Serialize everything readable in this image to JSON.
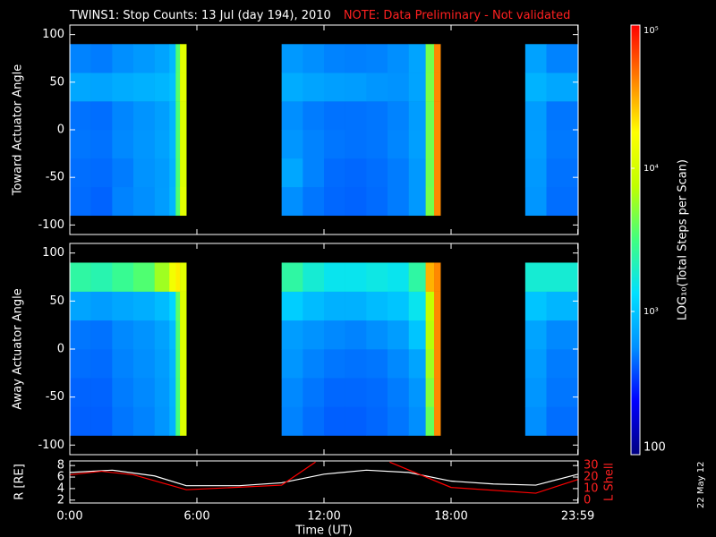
{
  "title": "TWINS1: Stop Counts: 13 Jul (day 194), 2010",
  "note": "NOTE: Data Preliminary - Not validated",
  "footer": "22 May 12",
  "colorbar": {
    "label": "LOG₁₀(Total Steps per Scan)",
    "zlim": [
      100,
      100000
    ],
    "log": true,
    "zticks": [
      100,
      {
        "value": 1000,
        "label": "10³"
      },
      {
        "value": 10000,
        "label": "10⁴"
      },
      {
        "value": 100000,
        "label": "10⁵"
      }
    ],
    "colormap": [
      "#000080",
      "#0000ff",
      "#0090ff",
      "#00e0ff",
      "#40ff80",
      "#c0ff00",
      "#ffff00",
      "#ff8000",
      "#ff0000"
    ]
  },
  "chart_data": [
    {
      "type": "heatmap",
      "ylabel": "Toward Actuator Angle",
      "xlim": [
        0,
        24
      ],
      "ylim": [
        -110,
        110
      ],
      "yticks": [
        -100,
        -50,
        0,
        50,
        100
      ],
      "x_edges": [
        0,
        1,
        2,
        3,
        4,
        4.7,
        5,
        5.2,
        5.5,
        10,
        11,
        12,
        13,
        14,
        15,
        16,
        16.8,
        17.2,
        17.5,
        21.5,
        22.5,
        24
      ],
      "y_edges": [
        -90,
        -60,
        -30,
        0,
        30,
        60,
        90
      ],
      "values": [
        [
          450,
          460,
          480,
          470,
          720,
          520
        ],
        [
          430,
          450,
          470,
          460,
          700,
          500
        ],
        [
          520,
          500,
          540,
          530,
          760,
          560
        ],
        [
          560,
          580,
          600,
          590,
          800,
          620
        ],
        [
          650,
          640,
          680,
          660,
          850,
          700
        ],
        [
          850,
          820,
          860,
          840,
          950,
          880
        ],
        [
          3500,
          3300,
          3400,
          3300,
          3600,
          3500
        ],
        [
          12000,
          11000,
          11000,
          11000,
          12000,
          12000
        ],
        null,
        [
          560,
          720,
          600,
          560,
          760,
          620
        ],
        [
          480,
          520,
          520,
          500,
          700,
          560
        ],
        [
          440,
          450,
          480,
          470,
          660,
          520
        ],
        [
          430,
          440,
          470,
          470,
          650,
          510
        ],
        [
          450,
          460,
          480,
          480,
          600,
          520
        ],
        [
          500,
          500,
          530,
          520,
          580,
          560
        ],
        [
          620,
          620,
          660,
          650,
          700,
          700
        ],
        [
          4500,
          4300,
          4400,
          4300,
          4600,
          4500
        ],
        [
          40000,
          40000,
          40000,
          40000,
          40000,
          40000
        ],
        null,
        [
          600,
          620,
          650,
          640,
          820,
          680
        ],
        [
          460,
          470,
          490,
          480,
          720,
          520
        ]
      ]
    },
    {
      "type": "heatmap",
      "ylabel": "Away Actuator Angle",
      "xlim": [
        0,
        24
      ],
      "ylim": [
        -110,
        110
      ],
      "yticks": [
        -100,
        -50,
        0,
        50,
        100
      ],
      "x_edges": [
        0,
        1,
        2,
        3,
        4,
        4.7,
        5,
        5.2,
        5.5,
        10,
        11,
        12,
        13,
        14,
        15,
        16,
        16.8,
        17.2,
        17.5,
        21.5,
        22.5,
        24
      ],
      "y_edges": [
        -90,
        -60,
        -30,
        0,
        30,
        60,
        90
      ],
      "values": [
        [
          420,
          430,
          460,
          480,
          700,
          2500
        ],
        [
          420,
          430,
          450,
          470,
          650,
          2300
        ],
        [
          480,
          500,
          520,
          540,
          720,
          2800
        ],
        [
          520,
          540,
          560,
          580,
          780,
          3500
        ],
        [
          600,
          620,
          650,
          680,
          900,
          6000
        ],
        [
          800,
          820,
          850,
          900,
          1200,
          15000
        ],
        [
          3200,
          3200,
          3300,
          3400,
          3800,
          20000
        ],
        [
          11000,
          11000,
          11000,
          11000,
          11000,
          12000
        ],
        null,
        [
          520,
          540,
          600,
          650,
          1100,
          2500
        ],
        [
          460,
          480,
          520,
          580,
          900,
          1800
        ],
        [
          420,
          440,
          480,
          540,
          800,
          1500
        ],
        [
          420,
          440,
          470,
          520,
          800,
          1500
        ],
        [
          440,
          450,
          480,
          560,
          900,
          1600
        ],
        [
          480,
          500,
          540,
          650,
          1000,
          1500
        ],
        [
          560,
          600,
          700,
          1000,
          1500,
          2500
        ],
        [
          4000,
          5000,
          6000,
          7000,
          8000,
          30000
        ],
        [
          40000,
          40000,
          40000,
          40000,
          40000,
          40000
        ],
        null,
        [
          560,
          600,
          640,
          700,
          1000,
          1800
        ],
        [
          460,
          480,
          500,
          540,
          850,
          1800
        ]
      ]
    },
    {
      "type": "line",
      "ylabel": "R [RE]",
      "y2label": "L Shell",
      "xlabel": "Time (UT)",
      "xlim": [
        0,
        24
      ],
      "xticks": [
        {
          "value": 0,
          "label": "0:00"
        },
        {
          "value": 6,
          "label": "6:00"
        },
        {
          "value": 12,
          "label": "12:00"
        },
        {
          "value": 18,
          "label": "18:00"
        },
        {
          "value": 23.983,
          "label": "23:59"
        }
      ],
      "ylim": [
        1.5,
        8.8
      ],
      "yticks": [
        2,
        4,
        6,
        8
      ],
      "y2lim": [
        -2.5,
        34
      ],
      "y2ticks": [
        0,
        10,
        20,
        30
      ],
      "series": [
        {
          "color": "#ffffff",
          "x": [
            0,
            2,
            4,
            5.5,
            8,
            10,
            12,
            14,
            16,
            18,
            20,
            22,
            24
          ],
          "values": [
            6.8,
            7.2,
            6.2,
            4.5,
            4.5,
            5.0,
            6.5,
            7.2,
            6.8,
            5.3,
            4.8,
            4.6,
            6.5
          ]
        },
        {
          "color": "#ff0000",
          "axis": "y2",
          "x": [
            0,
            1.5,
            3,
            5.5,
            10,
            11.6,
            13.4,
            15.1,
            18,
            22,
            24
          ],
          "values": [
            22,
            25,
            22,
            9,
            13,
            33,
            null,
            33,
            11,
            6,
            18
          ]
        }
      ]
    }
  ]
}
